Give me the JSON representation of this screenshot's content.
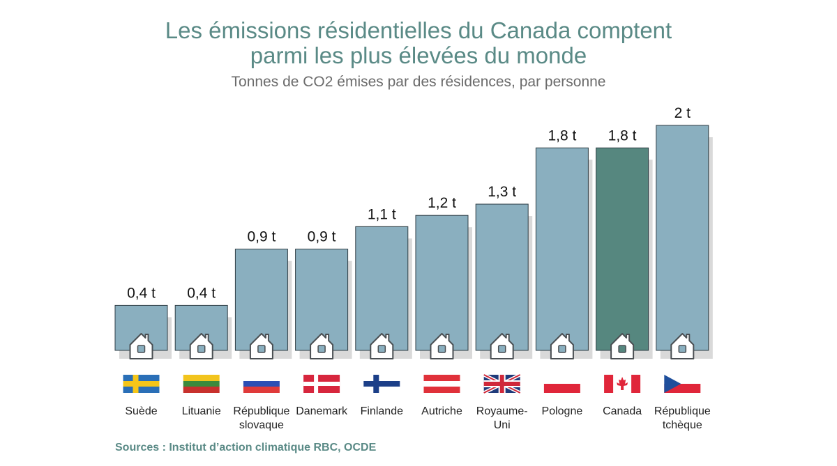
{
  "header": {
    "title_line1": "Les émissions résidentielles du Canada comptent",
    "title_line2": "parmi les plus élevées du monde",
    "subtitle": "Tonnes de CO2 émises par des résidences, par personne"
  },
  "footer": {
    "source": "Sources : Institut d’action climatique RBC, OCDE"
  },
  "colors": {
    "bar": "#8aafbf",
    "highlight": "#56877f",
    "shadow": "#d9d9d9",
    "title": "#5a8a86"
  },
  "chart_data": {
    "type": "bar",
    "title": "Les émissions résidentielles du Canada comptent parmi les plus élevées du monde",
    "subtitle": "Tonnes de CO2 émises par des résidences, par personne",
    "categories": [
      "Suède",
      "Lituanie",
      "République slovaque",
      "Danemark",
      "Finlande",
      "Autriche",
      "Royaume-Uni",
      "Pologne",
      "Canada",
      "République tchèque"
    ],
    "category_lines": [
      [
        "Suède"
      ],
      [
        "Lituanie"
      ],
      [
        "République",
        "slovaque"
      ],
      [
        "Danemark"
      ],
      [
        "Finlande"
      ],
      [
        "Autriche"
      ],
      [
        "Royaume-",
        "Uni"
      ],
      [
        "Pologne"
      ],
      [
        "Canada"
      ],
      [
        "République",
        "tchèque"
      ]
    ],
    "values": [
      0.4,
      0.4,
      0.9,
      0.9,
      1.1,
      1.2,
      1.3,
      1.8,
      1.8,
      2.0
    ],
    "value_labels": [
      "0,4 t",
      "0,4 t",
      "0,9 t",
      "0,9 t",
      "1,1 t",
      "1,2 t",
      "1,3 t",
      "1,8 t",
      "1,8 t",
      "2 t"
    ],
    "highlight": "Canada",
    "flags": [
      "sweden",
      "lithuania",
      "slovakia",
      "denmark",
      "finland",
      "austria",
      "united-kingdom",
      "poland",
      "canada",
      "czech-republic"
    ],
    "bar_icon": "house-icon",
    "ylim": [
      0,
      2.0
    ],
    "xlabel": "",
    "ylabel": "",
    "grid": false,
    "legend": "none"
  }
}
